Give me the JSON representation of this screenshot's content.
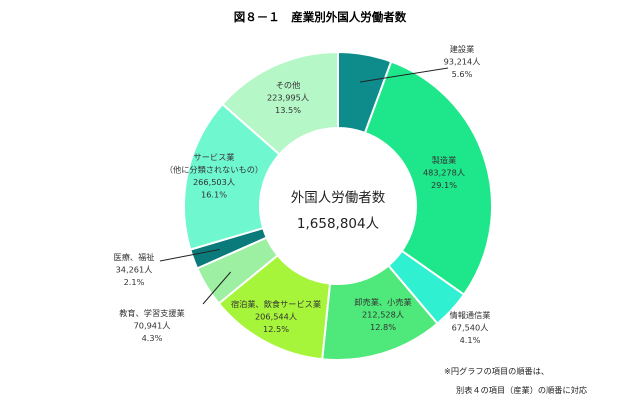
{
  "chart_data": {
    "type": "pie",
    "title": "図８－１　産業別外国人労働者数",
    "center_label": "外国人労働者数",
    "center_value": "1,658,804人",
    "slices": [
      {
        "name": "建設業",
        "value": 93214,
        "value_label": "93,214人",
        "percent": "5.6%",
        "color": "#0e8c8c"
      },
      {
        "name": "製造業",
        "value": 483278,
        "value_label": "483,278人",
        "percent": "29.1%",
        "color": "#1ee68a"
      },
      {
        "name": "情報通信業",
        "value": 67540,
        "value_label": "67,540人",
        "percent": "4.1%",
        "color": "#2ff0d0"
      },
      {
        "name": "卸売業、小売業",
        "value": 212528,
        "value_label": "212,528人",
        "percent": "12.8%",
        "color": "#4fe87a"
      },
      {
        "name": "宿泊業、飲食サービス業",
        "value": 206544,
        "value_label": "206,544人",
        "percent": "12.5%",
        "color": "#a6f53a"
      },
      {
        "name": "教育、学習支援業",
        "value": 70941,
        "value_label": "70,941人",
        "percent": "4.3%",
        "color": "#9df0a2"
      },
      {
        "name": "医療、福祉",
        "value": 34261,
        "value_label": "34,261人",
        "percent": "2.1%",
        "color": "#0a7a7a"
      },
      {
        "name": "サービス業\n（他に分類されないもの）",
        "value": 266503,
        "value_label": "266,503人",
        "percent": "16.1%",
        "color": "#6ff7cf"
      },
      {
        "name": "その他",
        "value": 223995,
        "value_label": "223,995人",
        "percent": "13.5%",
        "color": "#b5f7c6"
      }
    ],
    "notes": [
      "※円グラフの項目の順番は、",
      "別表４の項目（産業）の順番に対応"
    ]
  }
}
